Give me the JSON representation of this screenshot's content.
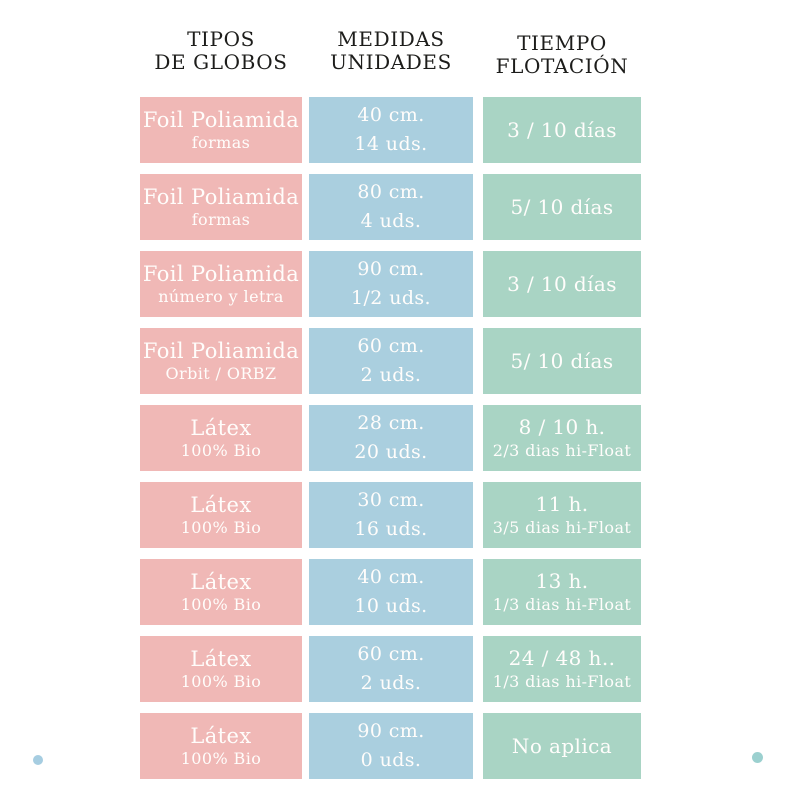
{
  "chart_data": {
    "type": "table",
    "columns": [
      {
        "id": "tipos",
        "header_line1": "TIPOS",
        "header_line2": "DE GLOBOS",
        "color": "#f0b8b6"
      },
      {
        "id": "medidas",
        "header_line1": "MEDIDAS",
        "header_line2": "UNIDADES",
        "color": "#aacfdf"
      },
      {
        "id": "tiempo",
        "header_line1": "TIEMPO",
        "header_line2": "FLOTACIÓN",
        "color": "#a9d4c4"
      }
    ],
    "rows": [
      {
        "tipo": "Foil Poliamida",
        "tipo_sub": "formas",
        "medida": "40 cm.",
        "unidades": "14 uds.",
        "tiempo": "3 / 10 días",
        "tiempo_sub": ""
      },
      {
        "tipo": "Foil Poliamida",
        "tipo_sub": "formas",
        "medida": "80 cm.",
        "unidades": "4 uds.",
        "tiempo": "5/ 10 días",
        "tiempo_sub": ""
      },
      {
        "tipo": "Foil Poliamida",
        "tipo_sub": "número y letra",
        "medida": "90 cm.",
        "unidades": "1/2 uds.",
        "tiempo": "3 / 10 días",
        "tiempo_sub": ""
      },
      {
        "tipo": "Foil Poliamida",
        "tipo_sub": "Orbit / ORBZ",
        "medida": "60 cm.",
        "unidades": "2 uds.",
        "tiempo": "5/ 10 días",
        "tiempo_sub": ""
      },
      {
        "tipo": "Látex",
        "tipo_sub": "100% Bio",
        "medida": "28 cm.",
        "unidades": "20 uds.",
        "tiempo": "8 / 10 h.",
        "tiempo_sub": "2/3 dias hi-Float"
      },
      {
        "tipo": "Látex",
        "tipo_sub": "100% Bio",
        "medida": "30 cm.",
        "unidades": "16 uds.",
        "tiempo": "11 h.",
        "tiempo_sub": "3/5 dias hi-Float"
      },
      {
        "tipo": "Látex",
        "tipo_sub": "100% Bio",
        "medida": "40 cm.",
        "unidades": "10 uds.",
        "tiempo": "13 h.",
        "tiempo_sub": "1/3 dias hi-Float"
      },
      {
        "tipo": "Látex",
        "tipo_sub": "100% Bio",
        "medida": "60 cm.",
        "unidades": "2 uds.",
        "tiempo": "24 / 48 h..",
        "tiempo_sub": "1/3 dias hi-Float"
      },
      {
        "tipo": "Látex",
        "tipo_sub": "100% Bio",
        "medida": "90 cm.",
        "unidades": "0 uds.",
        "tiempo": "No aplica",
        "tiempo_sub": ""
      }
    ],
    "layout": {
      "grid": false,
      "legend": "none"
    }
  },
  "decorations": {
    "bottom_left_dot_color": "#a6cde1",
    "bottom_right_dot_color": "#9bd0cf"
  },
  "colors": {
    "background": "#ffffff",
    "header_text": "#1d1d1b",
    "cell_text": "#ffffff",
    "pink": "#f0b8b6",
    "blue": "#aacfdf",
    "green": "#a9d4c4"
  }
}
